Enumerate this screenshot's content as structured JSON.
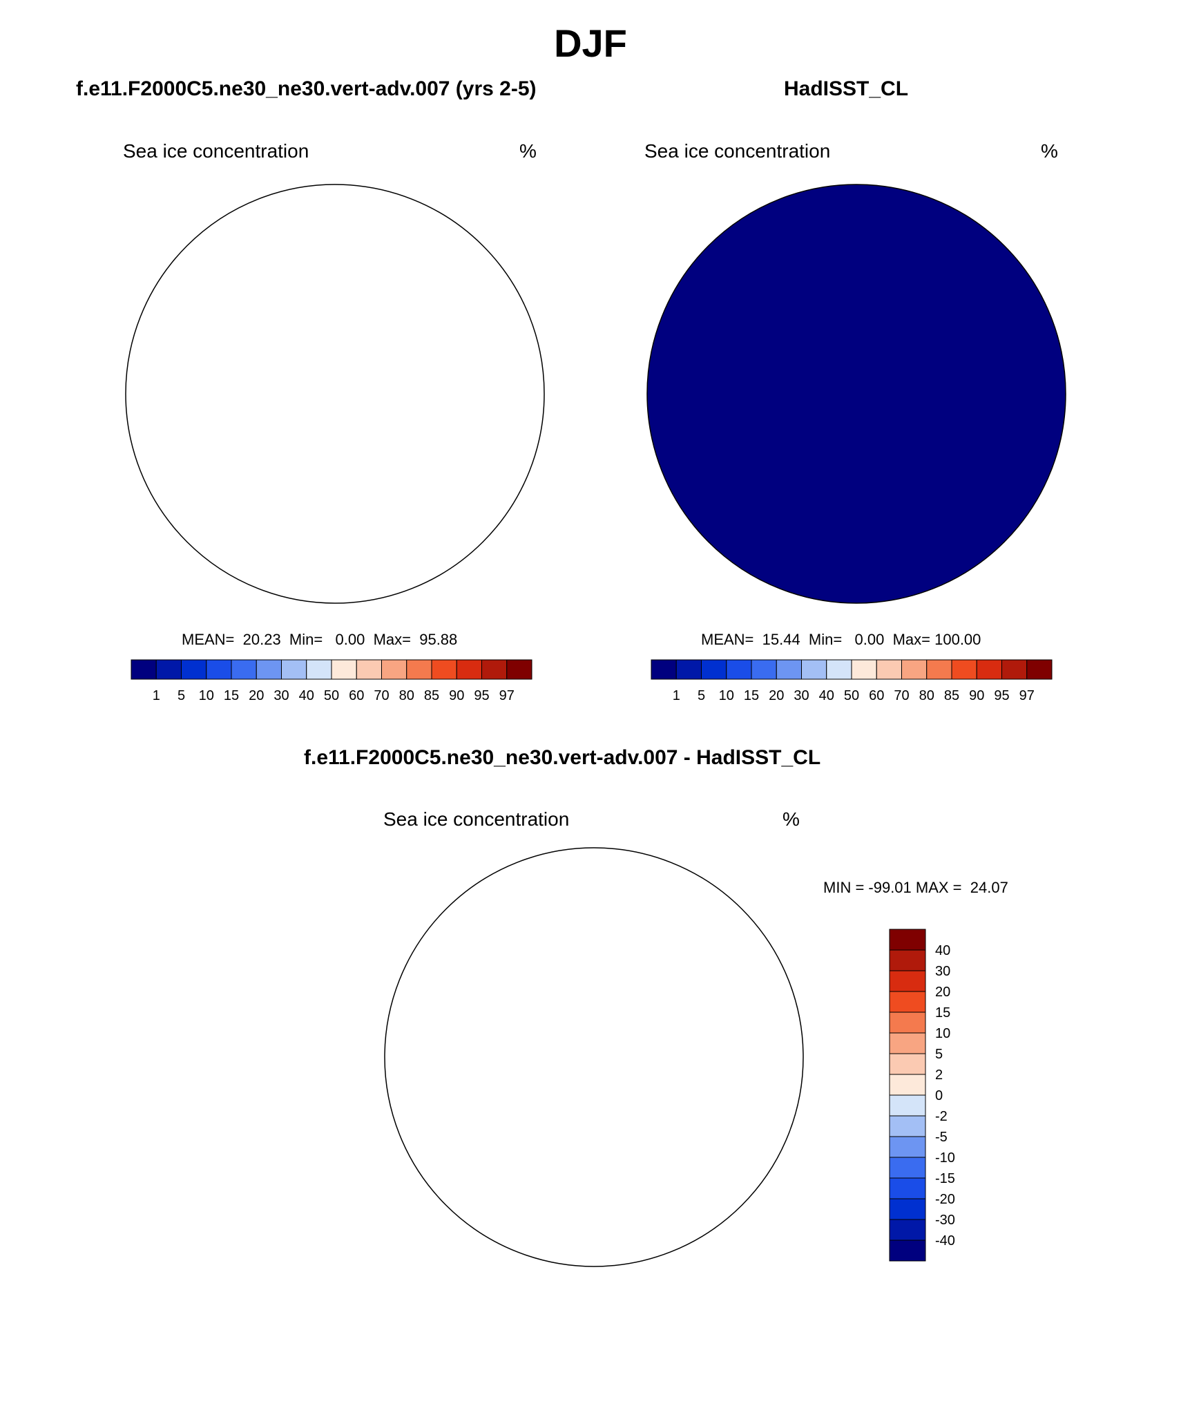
{
  "title": "DJF",
  "panels": [
    {
      "id": "model",
      "case_title": "f.e11.F2000C5.ne30_ne30.vert-adv.007 (yrs 2-5)",
      "variable": "Sea ice concentration",
      "units": "%",
      "stats": "MEAN=  20.23  Min=   0.00  Max=  95.88"
    },
    {
      "id": "obs",
      "case_title": "HadISST_CL",
      "variable": "Sea ice concentration",
      "units": "%",
      "stats": "MEAN=  15.44  Min=   0.00  Max= 100.00"
    },
    {
      "id": "diff",
      "case_title": "f.e11.F2000C5.ne30_ne30.vert-adv.007 - HadISST_CL",
      "variable": "Sea ice concentration",
      "units": "%",
      "stats": "MIN = -99.01 MAX =  24.07"
    }
  ],
  "colorbar_abs": {
    "labels": [
      "1",
      "5",
      "10",
      "15",
      "20",
      "30",
      "40",
      "50",
      "60",
      "70",
      "80",
      "85",
      "90",
      "95",
      "97"
    ],
    "colors": [
      "#00007f",
      "#0018a8",
      "#0030d0",
      "#1a4de8",
      "#3a6cf0",
      "#6d95f2",
      "#a3bff5",
      "#d4e4f9",
      "#fde9da",
      "#fbcab2",
      "#f8a582",
      "#f47a4e",
      "#ef4c20",
      "#d82c10",
      "#b01a0b",
      "#7f0000"
    ]
  },
  "colorbar_diff": {
    "labels": [
      "40",
      "30",
      "20",
      "15",
      "10",
      "5",
      "2",
      "0",
      "-2",
      "-5",
      "-10",
      "-15",
      "-20",
      "-30",
      "-40"
    ],
    "colors": [
      "#7f0000",
      "#b01a0b",
      "#d82c10",
      "#ef4c20",
      "#f47a4e",
      "#f8a582",
      "#fbcab2",
      "#fde9da",
      "#d4e4f9",
      "#a3bff5",
      "#6d95f2",
      "#3a6cf0",
      "#1a4de8",
      "#0030d0",
      "#0018a8",
      "#00007f"
    ]
  }
}
